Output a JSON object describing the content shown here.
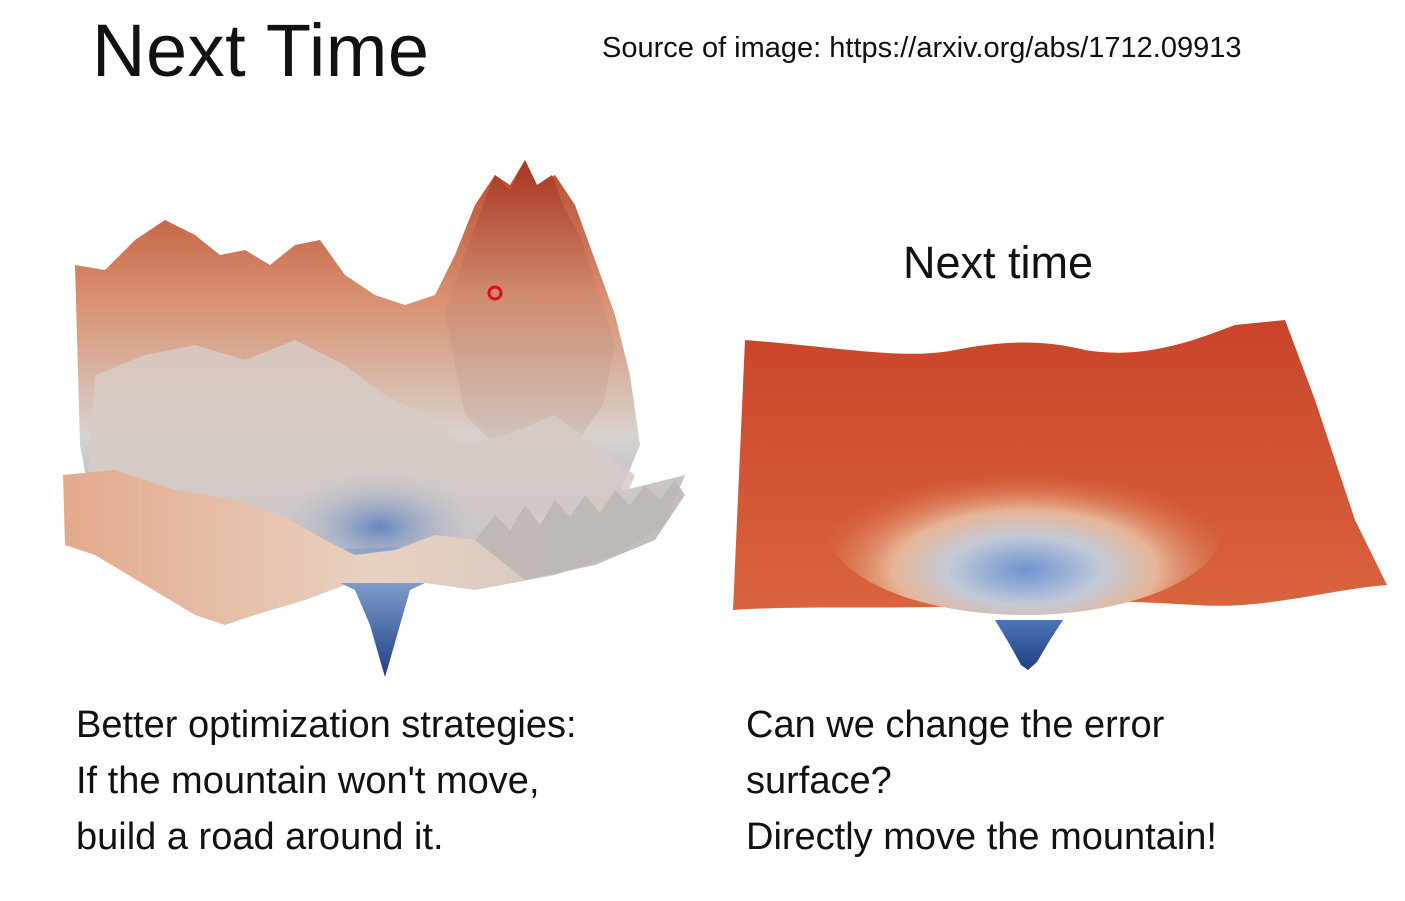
{
  "slide": {
    "title": "Next Time",
    "source": "Source of image: https://arxiv.org/abs/1712.09913",
    "right_panel_title": "Next time",
    "left_caption": [
      "Better optimization strategies:",
      "If the mountain won't move,",
      "build a road around it."
    ],
    "right_caption": [
      "Can we change the error",
      "surface?",
      "Directly move the mountain!"
    ]
  },
  "figures": {
    "left": {
      "icon": "rugged-loss-surface-icon",
      "marker_color": "#e0101a"
    },
    "right": {
      "icon": "smooth-loss-surface-icon"
    },
    "colors": {
      "high": "#c6442a",
      "mid": "#e7c8b6",
      "low": "#2f57a0"
    }
  }
}
